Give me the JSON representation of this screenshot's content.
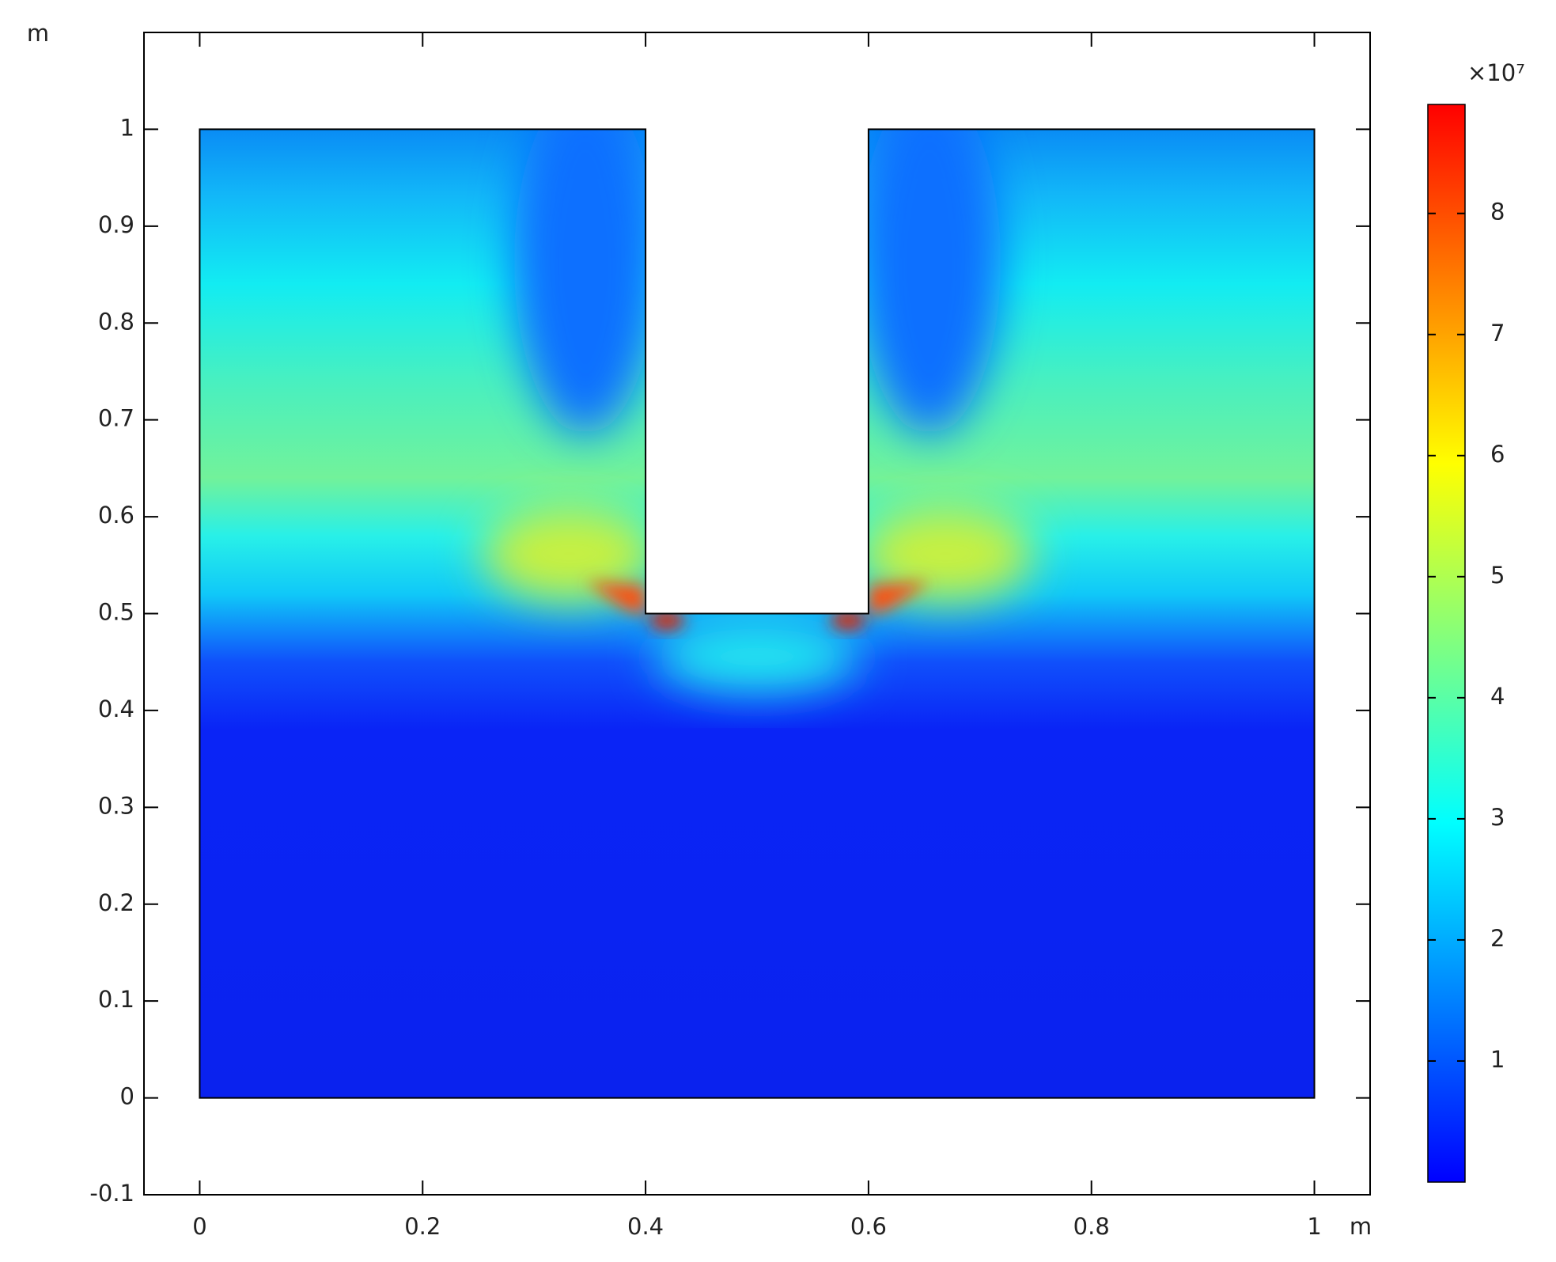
{
  "chart_data": {
    "type": "field",
    "x_unit": "m",
    "y_unit": "m",
    "xlim": [
      -0.05,
      1.05
    ],
    "ylim": [
      -0.1,
      1.1
    ],
    "xticks": [
      0,
      0.2,
      0.4,
      0.6,
      0.8,
      1
    ],
    "yticks": [
      -0.1,
      0,
      0.1,
      0.2,
      0.3,
      0.4,
      0.5,
      0.6,
      0.7,
      0.8,
      0.9,
      1
    ],
    "domain": {
      "x": [
        0,
        1,
        1,
        0.6,
        0.6,
        0.4,
        0.4,
        0
      ],
      "y": [
        0,
        0,
        1,
        1,
        0.5,
        0.5,
        1,
        1
      ]
    },
    "colorbar": {
      "multiplier": "×10⁷",
      "lim": [
        0,
        8.9
      ],
      "ticks": [
        1,
        2,
        3,
        4,
        5,
        6,
        7,
        8
      ],
      "colors": [
        "#0000ff",
        "#0080ff",
        "#00ffff",
        "#80ff80",
        "#ffff00",
        "#ff8000",
        "#ff0000"
      ]
    }
  }
}
